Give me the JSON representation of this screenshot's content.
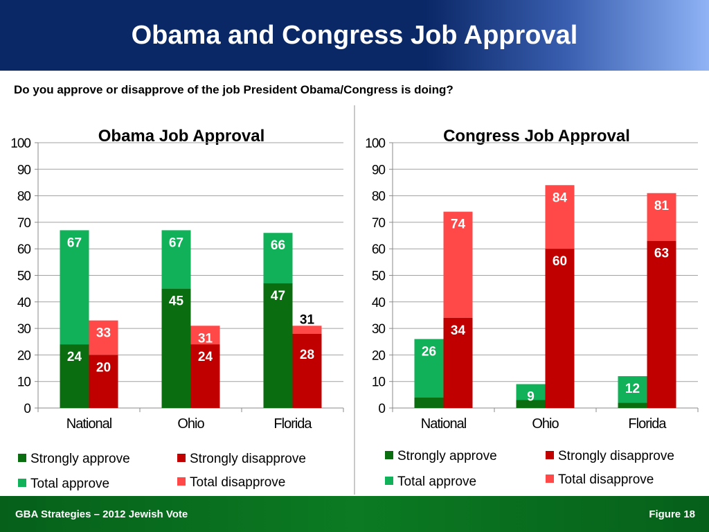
{
  "header": {
    "title": "Obama and Congress Job Approval"
  },
  "question": "Do you approve or disapprove of the job President Obama/Congress is doing?",
  "footer": {
    "left": "GBA Strategies – 2012 Jewish Vote",
    "right": "Figure  18"
  },
  "colors": {
    "strongly_approve": "#0a6e10",
    "total_approve": "#10b158",
    "strongly_disapprove": "#c00000",
    "total_disapprove": "#ff4848"
  },
  "legend": {
    "strongly_approve": "Strongly approve",
    "strongly_disapprove": "Strongly disapprove",
    "total_approve": "Total approve",
    "total_disapprove": "Total disapprove"
  },
  "chart_data": [
    {
      "type": "bar",
      "title": "Obama Job Approval",
      "categories": [
        "National",
        "Ohio",
        "Florida"
      ],
      "ylim": [
        0,
        100
      ],
      "yticks": [
        0,
        10,
        20,
        30,
        40,
        50,
        60,
        70,
        80,
        90,
        100
      ],
      "series": [
        {
          "name": "Strongly approve",
          "values": [
            24,
            45,
            47
          ]
        },
        {
          "name": "Total approve",
          "values": [
            67,
            67,
            66
          ]
        },
        {
          "name": "Strongly disapprove",
          "values": [
            20,
            24,
            28
          ]
        },
        {
          "name": "Total disapprove",
          "values": [
            33,
            31,
            31
          ]
        }
      ],
      "grid": true,
      "legend": "bottom"
    },
    {
      "type": "bar",
      "title": "Congress Job Approval",
      "categories": [
        "National",
        "Ohio",
        "Florida"
      ],
      "ylim": [
        0,
        100
      ],
      "yticks": [
        0,
        10,
        20,
        30,
        40,
        50,
        60,
        70,
        80,
        90,
        100
      ],
      "series": [
        {
          "name": "Strongly approve",
          "values": [
            4,
            3,
            2
          ]
        },
        {
          "name": "Total approve",
          "values": [
            26,
            9,
            12
          ]
        },
        {
          "name": "Strongly disapprove",
          "values": [
            34,
            60,
            63
          ]
        },
        {
          "name": "Total disapprove",
          "values": [
            74,
            84,
            81
          ]
        }
      ],
      "grid": true,
      "legend": "bottom"
    }
  ]
}
